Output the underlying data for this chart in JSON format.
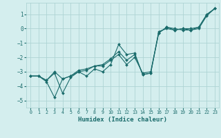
{
  "xlabel": "Humidex (Indice chaleur)",
  "bg_color": "#d4eeee",
  "grid_color": "#aed4d4",
  "line_color": "#1a6b6b",
  "xlim": [
    -0.5,
    23.5
  ],
  "ylim": [
    -5.5,
    1.8
  ],
  "yticks": [
    1,
    0,
    -1,
    -2,
    -3,
    -4,
    -5
  ],
  "xticks": [
    0,
    1,
    2,
    3,
    4,
    5,
    6,
    7,
    8,
    9,
    10,
    11,
    12,
    13,
    14,
    15,
    16,
    17,
    18,
    19,
    20,
    21,
    22,
    23
  ],
  "series": [
    {
      "x": [
        0,
        1,
        2,
        3,
        4,
        5,
        6,
        7,
        8,
        9,
        10,
        11,
        12,
        13,
        14,
        15,
        16,
        17,
        18,
        19,
        20,
        21,
        22,
        23
      ],
      "y": [
        -3.3,
        -3.3,
        -3.7,
        -4.8,
        -3.5,
        -3.3,
        -3.0,
        -3.3,
        -2.8,
        -3.0,
        -2.5,
        -1.1,
        -1.8,
        -1.7,
        -3.2,
        -3.1,
        -0.3,
        0.1,
        0.0,
        -0.1,
        -0.1,
        0.1,
        1.0,
        1.4
      ]
    },
    {
      "x": [
        0,
        1,
        2,
        3,
        4,
        5,
        6,
        7,
        8,
        9,
        10,
        11,
        12,
        13,
        14,
        15,
        16,
        17,
        18,
        19,
        20,
        21,
        22,
        23
      ],
      "y": [
        -3.3,
        -3.3,
        -3.6,
        -3.0,
        -3.5,
        -3.3,
        -2.9,
        -2.8,
        -2.6,
        -2.5,
        -2.1,
        -1.6,
        -2.2,
        -1.8,
        -3.2,
        -3.1,
        -0.2,
        0.0,
        -0.1,
        0.0,
        -0.1,
        0.0,
        0.9,
        1.4
      ]
    },
    {
      "x": [
        0,
        1,
        2,
        3,
        4,
        5,
        6,
        7,
        8,
        9,
        10,
        11,
        12,
        13,
        14,
        15,
        16,
        17,
        18,
        19,
        20,
        21,
        22,
        23
      ],
      "y": [
        -3.3,
        -3.3,
        -3.6,
        -3.1,
        -4.5,
        -3.4,
        -3.0,
        -2.9,
        -2.6,
        -2.6,
        -2.2,
        -1.8,
        -2.5,
        -2.0,
        -3.1,
        -3.0,
        -0.3,
        0.1,
        -0.1,
        0.0,
        0.0,
        0.1,
        0.95,
        1.4
      ]
    }
  ]
}
